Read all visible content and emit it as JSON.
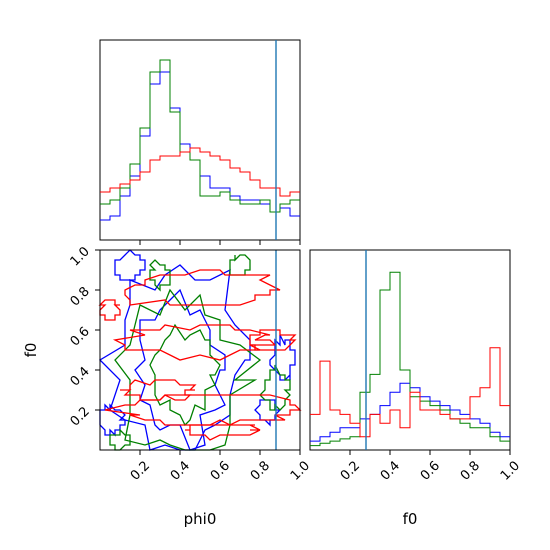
{
  "chart_data": [
    {
      "type": "histogram",
      "panel": "phi0 marginal",
      "x_range": [
        0,
        1
      ],
      "bins": [
        0.0,
        0.05,
        0.1,
        0.15,
        0.2,
        0.25,
        0.3,
        0.35,
        0.4,
        0.45,
        0.5,
        0.55,
        0.6,
        0.65,
        0.7,
        0.75,
        0.8,
        0.85,
        0.9,
        0.95,
        1.0
      ],
      "series": [
        {
          "color": "#0000ff",
          "values": [
            0.1,
            0.12,
            0.22,
            0.32,
            0.52,
            0.78,
            0.84,
            0.66,
            0.48,
            0.4,
            0.32,
            0.26,
            0.26,
            0.22,
            0.2,
            0.2,
            0.18,
            0.14,
            0.16,
            0.12
          ]
        },
        {
          "color": "#008000",
          "values": [
            0.18,
            0.2,
            0.26,
            0.38,
            0.56,
            0.84,
            0.9,
            0.64,
            0.44,
            0.4,
            0.22,
            0.22,
            0.24,
            0.2,
            0.18,
            0.18,
            0.2,
            0.14,
            0.18,
            0.2
          ]
        },
        {
          "color": "#ff0000",
          "values": [
            0.24,
            0.26,
            0.28,
            0.3,
            0.34,
            0.4,
            0.42,
            0.42,
            0.44,
            0.46,
            0.44,
            0.42,
            0.4,
            0.36,
            0.34,
            0.3,
            0.26,
            0.26,
            0.22,
            0.24
          ]
        }
      ],
      "vline": {
        "x": 0.88,
        "color": "#1f77b4"
      }
    },
    {
      "type": "histogram",
      "panel": "f0 marginal",
      "x_range": [
        0,
        1
      ],
      "bins": [
        0.0,
        0.05,
        0.1,
        0.15,
        0.2,
        0.25,
        0.3,
        0.35,
        0.4,
        0.45,
        0.5,
        0.55,
        0.6,
        0.65,
        0.7,
        0.75,
        0.8,
        0.85,
        0.9,
        0.95,
        1.0
      ],
      "series": [
        {
          "color": "#0000ff",
          "values": [
            0.04,
            0.06,
            0.08,
            0.1,
            0.1,
            0.14,
            0.16,
            0.2,
            0.26,
            0.3,
            0.28,
            0.24,
            0.22,
            0.2,
            0.18,
            0.16,
            0.14,
            0.12,
            0.08,
            0.06
          ]
        },
        {
          "color": "#008000",
          "values": [
            0.02,
            0.03,
            0.04,
            0.05,
            0.06,
            0.26,
            0.34,
            0.72,
            0.8,
            0.36,
            0.24,
            0.22,
            0.2,
            0.18,
            0.14,
            0.12,
            0.1,
            0.1,
            0.06,
            0.04
          ]
        },
        {
          "color": "#ff0000",
          "values": [
            0.16,
            0.4,
            0.18,
            0.16,
            0.12,
            0.06,
            0.16,
            0.12,
            0.18,
            0.1,
            0.26,
            0.18,
            0.18,
            0.16,
            0.14,
            0.14,
            0.24,
            0.28,
            0.46,
            0.2
          ]
        }
      ],
      "vline": {
        "x": 0.28,
        "color": "#1f77b4"
      }
    },
    {
      "type": "contour",
      "panel": "f0 vs phi0",
      "x_range": [
        0,
        1
      ],
      "y_range": [
        0,
        1
      ],
      "series_colors": [
        "#0000ff",
        "#008000",
        "#ff0000"
      ]
    }
  ],
  "axes": {
    "xlabel_left": "phi0",
    "xlabel_right": "f0",
    "ylabel": "f0",
    "x_ticks": [
      "0.2",
      "0.4",
      "0.6",
      "0.8",
      "1.0"
    ],
    "y_ticks": [
      "0.2",
      "0.4",
      "0.6",
      "0.8",
      "1.0"
    ],
    "tick_values": [
      0.2,
      0.4,
      0.6,
      0.8,
      1.0
    ]
  }
}
